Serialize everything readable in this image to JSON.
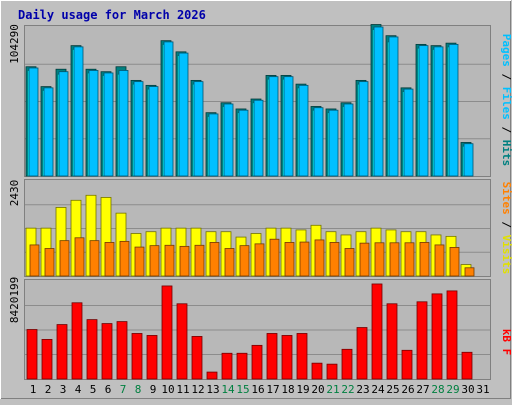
{
  "chart_data": [
    {
      "type": "bar",
      "title": "Daily usage for March 2026",
      "categories": [
        "1",
        "2",
        "3",
        "4",
        "5",
        "6",
        "7",
        "8",
        "9",
        "10",
        "11",
        "12",
        "13",
        "14",
        "15",
        "16",
        "17",
        "18",
        "19",
        "20",
        "21",
        "22",
        "23",
        "24",
        "25",
        "26",
        "27",
        "28",
        "29",
        "30",
        "31"
      ],
      "category_weekend": [
        false,
        false,
        false,
        false,
        false,
        false,
        true,
        true,
        false,
        false,
        false,
        false,
        false,
        true,
        true,
        false,
        false,
        false,
        false,
        false,
        true,
        true,
        false,
        false,
        false,
        false,
        false,
        true,
        true,
        false,
        false
      ],
      "ylabel": "Pages / Files / Hits",
      "ytick_label": "104290",
      "ylim": [
        0,
        120000
      ],
      "series": [
        {
          "name": "Pages",
          "color": "#00c0ff",
          "values": [
            87000,
            71000,
            84000,
            104000,
            85000,
            83000,
            85000,
            76000,
            72000,
            108000,
            99000,
            76000,
            50000,
            58000,
            53000,
            61000,
            80000,
            80000,
            73000,
            55000,
            53000,
            58000,
            76000,
            120000,
            112000,
            70000,
            105000,
            104000,
            106000,
            26000,
            0
          ]
        },
        {
          "name": "Files",
          "color": "#00ffff",
          "values": [
            85000,
            69000,
            82000,
            102000,
            83000,
            81000,
            82000,
            74000,
            70000,
            106000,
            97000,
            74000,
            48000,
            56000,
            51000,
            59000,
            78000,
            78000,
            71000,
            53000,
            51000,
            56000,
            74000,
            118000,
            108000,
            68000,
            103000,
            102000,
            104000,
            24000,
            0
          ]
        },
        {
          "name": "Hits",
          "color": "#008080",
          "values": [
            88000,
            72000,
            86000,
            105000,
            86000,
            84000,
            88000,
            77000,
            73000,
            109000,
            100000,
            77000,
            51000,
            59000,
            54000,
            62000,
            81000,
            81000,
            74000,
            56000,
            54000,
            59000,
            77000,
            122000,
            113000,
            71000,
            106000,
            105000,
            107000,
            27000,
            0
          ]
        }
      ]
    },
    {
      "type": "bar",
      "ylabel": "Sites / Visits",
      "ytick_label": "2430",
      "ylim": [
        0,
        2660
      ],
      "series": [
        {
          "name": "Sites",
          "color": "#ff8000",
          "values": [
            870,
            770,
            990,
            1070,
            990,
            940,
            970,
            810,
            850,
            860,
            830,
            860,
            940,
            770,
            850,
            900,
            1030,
            940,
            950,
            1010,
            940,
            770,
            920,
            930,
            930,
            930,
            940,
            870,
            800,
            230,
            0
          ]
        },
        {
          "name": "Visits",
          "color": "#ffff00",
          "values": [
            1340,
            1340,
            1920,
            2120,
            2260,
            2200,
            1760,
            1190,
            1240,
            1340,
            1340,
            1340,
            1240,
            1240,
            1090,
            1190,
            1340,
            1340,
            1290,
            1420,
            1240,
            1150,
            1240,
            1340,
            1290,
            1240,
            1240,
            1150,
            1110,
            320,
            0
          ]
        }
      ]
    },
    {
      "type": "bar",
      "ylabel": "kB F",
      "ytick_label": "8420199",
      "ylim": [
        0,
        9900000
      ],
      "series": [
        {
          "name": "kB F",
          "color": "#ff0000",
          "values": [
            5000000,
            4000000,
            5500000,
            7700000,
            6000000,
            5600000,
            5800000,
            4600000,
            4400000,
            9400000,
            7600000,
            4300000,
            700000,
            2600000,
            2600000,
            3400000,
            4600000,
            4400000,
            4600000,
            1600000,
            1500000,
            3000000,
            5200000,
            9600000,
            7600000,
            2900000,
            7800000,
            8600000,
            8900000,
            2700000,
            0
          ]
        }
      ]
    }
  ]
}
